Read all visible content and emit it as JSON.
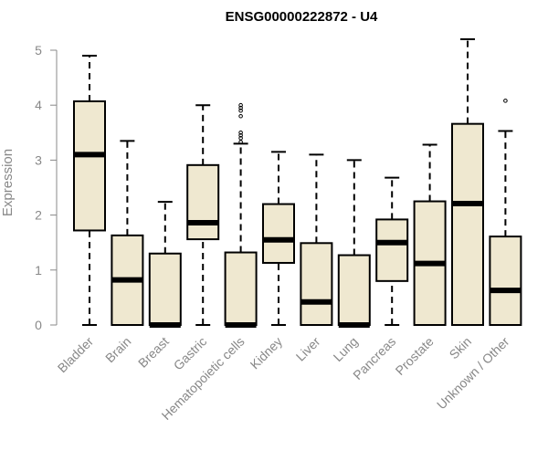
{
  "chart_data": {
    "type": "box",
    "title": "ENSG00000222872 - U4",
    "ylabel": "Expression",
    "xlabel": "",
    "ylim": [
      0,
      5.3
    ],
    "yticks": [
      0,
      1,
      2,
      3,
      4,
      5
    ],
    "grid": false,
    "legend": "none",
    "box_fill": "#efe8d0",
    "box_stroke": "#000000",
    "axis_color": "#888888",
    "categories": [
      "Bladder",
      "Brain",
      "Breast",
      "Gastric",
      "Hematopoietic cells",
      "Kidney",
      "Liver",
      "Lung",
      "Pancreas",
      "Prostate",
      "Skin",
      "Unknown / Other"
    ],
    "boxes": [
      {
        "name": "Bladder",
        "min": 0,
        "q1": 1.72,
        "median": 3.1,
        "q3": 4.07,
        "max": 4.9,
        "outliers": []
      },
      {
        "name": "Brain",
        "min": 0,
        "q1": 0,
        "median": 0.82,
        "q3": 1.63,
        "max": 3.35,
        "outliers": []
      },
      {
        "name": "Breast",
        "min": 0,
        "q1": 0,
        "median": 0,
        "q3": 1.3,
        "max": 2.24,
        "outliers": []
      },
      {
        "name": "Gastric",
        "min": 0,
        "q1": 1.56,
        "median": 1.86,
        "q3": 2.91,
        "max": 4.0,
        "outliers": []
      },
      {
        "name": "Hematopoietic cells",
        "min": 0,
        "q1": 0,
        "median": 0,
        "q3": 1.32,
        "max": 3.3,
        "outliers": [
          3.33,
          3.4,
          3.45,
          3.5,
          3.8,
          3.9,
          3.95,
          4.0
        ]
      },
      {
        "name": "Kidney",
        "min": 0,
        "q1": 1.13,
        "median": 1.55,
        "q3": 2.2,
        "max": 3.15,
        "outliers": []
      },
      {
        "name": "Liver",
        "min": 0,
        "q1": 0,
        "median": 0.42,
        "q3": 1.49,
        "max": 3.1,
        "outliers": []
      },
      {
        "name": "Lung",
        "min": 0,
        "q1": 0,
        "median": 0,
        "q3": 1.27,
        "max": 3.0,
        "outliers": []
      },
      {
        "name": "Pancreas",
        "min": 0,
        "q1": 0.8,
        "median": 1.5,
        "q3": 1.92,
        "max": 2.68,
        "outliers": []
      },
      {
        "name": "Prostate",
        "min": 0,
        "q1": 0,
        "median": 1.12,
        "q3": 2.25,
        "max": 3.28,
        "outliers": []
      },
      {
        "name": "Skin",
        "min": 0,
        "q1": 0,
        "median": 2.21,
        "q3": 3.66,
        "max": 5.2,
        "outliers": []
      },
      {
        "name": "Unknown / Other",
        "min": 0,
        "q1": 0,
        "median": 0.63,
        "q3": 1.61,
        "max": 3.53,
        "outliers": [
          4.08
        ]
      }
    ]
  }
}
